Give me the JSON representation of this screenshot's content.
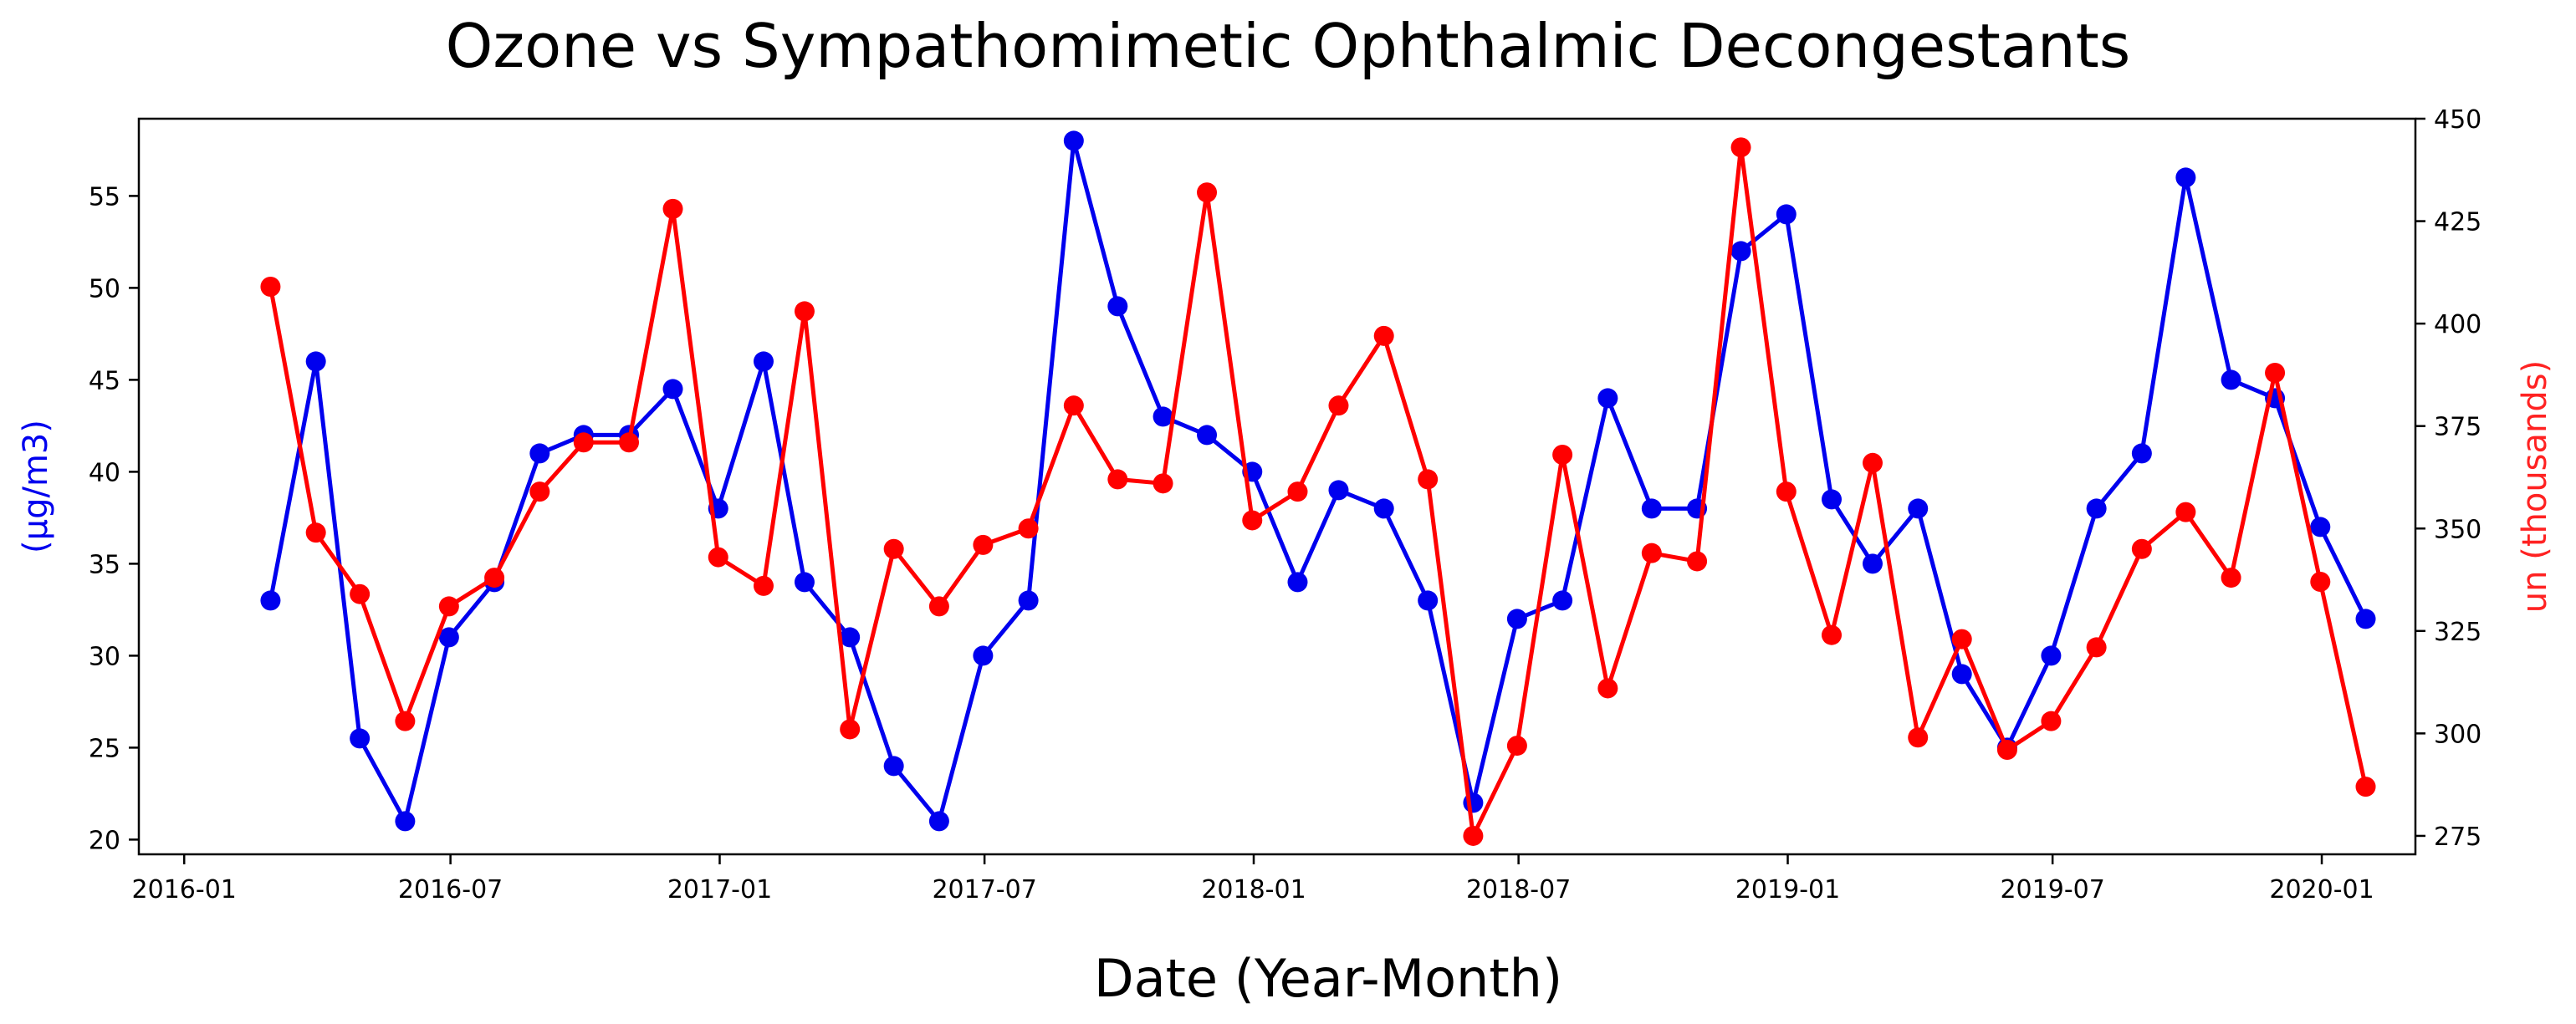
{
  "chart_data": {
    "type": "line",
    "title": "Ozone vs Sympathomimetic Ophthalmic Decongestants",
    "xlabel": "Date (Year-Month)",
    "ylabel_left": "(µg/m3)",
    "ylabel_right": "un (thousands)",
    "grid": false,
    "x_ticks": [
      "2016-01",
      "2016-07",
      "2017-01",
      "2017-07",
      "2018-01",
      "2018-07",
      "2019-01",
      "2019-07",
      "2020-01"
    ],
    "x_tick_dates": [
      "2016-01-01",
      "2016-07-01",
      "2017-01-01",
      "2017-07-01",
      "2018-01-01",
      "2018-07-01",
      "2019-01-01",
      "2019-07-01",
      "2020-01-01"
    ],
    "y_left_ticks": [
      "20",
      "25",
      "30",
      "35",
      "40",
      "45",
      "50",
      "55"
    ],
    "y_right_ticks": [
      "275",
      "300",
      "325",
      "350",
      "375",
      "400",
      "425",
      "450"
    ],
    "x_range": [
      "2015-12-01",
      "2020-03-05"
    ],
    "y_left_range": [
      19.2,
      59.2
    ],
    "y_right_range": [
      270.5,
      450
    ],
    "dates": [
      "2016-02-29",
      "2016-03-31",
      "2016-04-30",
      "2016-05-31",
      "2016-06-30",
      "2016-07-31",
      "2016-08-31",
      "2016-09-30",
      "2016-10-31",
      "2016-11-30",
      "2016-12-31",
      "2017-01-31",
      "2017-02-28",
      "2017-03-31",
      "2017-04-30",
      "2017-05-31",
      "2017-06-30",
      "2017-07-31",
      "2017-08-31",
      "2017-09-30",
      "2017-10-31",
      "2017-11-30",
      "2017-12-31",
      "2018-01-31",
      "2018-02-28",
      "2018-03-31",
      "2018-04-30",
      "2018-05-31",
      "2018-06-30",
      "2018-07-31",
      "2018-08-31",
      "2018-09-30",
      "2018-10-31",
      "2018-11-30",
      "2018-12-31",
      "2019-01-31",
      "2019-02-28",
      "2019-03-31",
      "2019-04-30",
      "2019-05-31",
      "2019-06-30",
      "2019-07-31",
      "2019-08-31",
      "2019-09-30",
      "2019-10-31",
      "2019-11-30",
      "2019-12-31",
      "2020-01-31"
    ],
    "series": [
      {
        "name": "Ozone",
        "axis": "left",
        "color": "#0000ee",
        "values": [
          33,
          46,
          25.5,
          21,
          31,
          34,
          41,
          42,
          42,
          44.5,
          38,
          46,
          34,
          31,
          24,
          21,
          30,
          33,
          58,
          49,
          43,
          42,
          40,
          34,
          39,
          38,
          33,
          22,
          32,
          33,
          44,
          38,
          38,
          52,
          54,
          38.5,
          35,
          38,
          29,
          25,
          30,
          38,
          41,
          56,
          45,
          44,
          37,
          32
        ]
      },
      {
        "name": "Sympathomimetic Ophthalmic Decongestants",
        "axis": "right",
        "color": "#ff0000",
        "values": [
          409,
          349,
          334,
          303,
          331,
          338,
          359,
          371,
          371,
          428,
          343,
          336,
          403,
          301,
          345,
          331,
          346,
          350,
          380,
          362,
          361,
          432,
          352,
          359,
          380,
          397,
          362,
          275,
          297,
          368,
          311,
          344,
          342,
          443,
          359,
          324,
          366,
          299,
          323,
          296,
          303,
          321,
          345,
          354,
          338,
          388,
          337,
          287
        ]
      }
    ]
  }
}
